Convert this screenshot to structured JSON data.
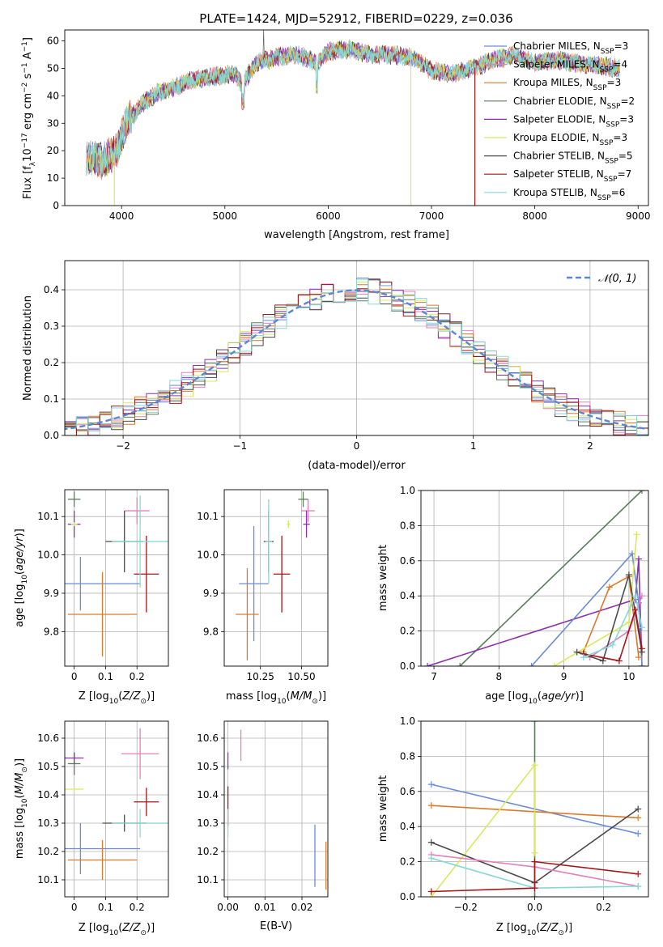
{
  "figure_title": "PLATE=1424, MJD=52912, FIBERID=0229, z=0.036",
  "colors": {
    "chabrier_miles": "#6a8bd6",
    "salpeter_miles": "#e47fbb",
    "kroupa_miles": "#db7a2b",
    "chabrier_elodie": "#5a7d5a",
    "salpeter_elodie": "#8e30ac",
    "kroupa_elodie": "#d9e85f",
    "chabrier_stelib": "#4a4a4a",
    "salpeter_stelib": "#a3161a",
    "kroupa_stelib": "#85d8d8"
  },
  "chart_data": [
    {
      "id": "spectrum",
      "type": "line",
      "title": "PLATE=1424, MJD=52912, FIBERID=0229, z=0.036",
      "xlabel": "wavelength [Angstrom, rest frame]",
      "ylabel_main": "Flux [f",
      "ylabel_sub": "λ",
      "ylabel_mid": "10",
      "ylabel_exp1": "−17",
      "ylabel_mid2": " erg cm",
      "ylabel_exp2": "−2",
      "ylabel_mid3": " s",
      "ylabel_exp3": "−1",
      "ylabel_mid4": " A",
      "ylabel_exp4": "−1",
      "ylabel_end": "]",
      "xlim": [
        3450,
        9100
      ],
      "ylim": [
        0,
        64
      ],
      "xticks": [
        4000,
        5000,
        6000,
        7000,
        8000,
        9000
      ],
      "yticks": [
        0,
        10,
        20,
        30,
        40,
        50,
        60
      ],
      "grid": false,
      "legend_position": "right",
      "legend": [
        {
          "name": "Chabrier MILES, N",
          "sub": "SSP",
          "tail": "=3",
          "color_key": "chabrier_miles"
        },
        {
          "name": "Salpeter MILES, N",
          "sub": "SSP",
          "tail": "=4",
          "color_key": "salpeter_miles"
        },
        {
          "name": "Kroupa MILES, N",
          "sub": "SSP",
          "tail": "=3",
          "color_key": "kroupa_miles"
        },
        {
          "name": "Chabrier ELODIE, N",
          "sub": "SSP",
          "tail": "=2",
          "color_key": "chabrier_elodie"
        },
        {
          "name": "Salpeter ELODIE, N",
          "sub": "SSP",
          "tail": "=3",
          "color_key": "salpeter_elodie"
        },
        {
          "name": "Kroupa ELODIE, N",
          "sub": "SSP",
          "tail": "=3",
          "color_key": "kroupa_elodie"
        },
        {
          "name": "Chabrier STELIB, N",
          "sub": "SSP",
          "tail": "=5",
          "color_key": "chabrier_stelib"
        },
        {
          "name": "Salpeter STELIB, N",
          "sub": "SSP",
          "tail": "=7",
          "color_key": "salpeter_stelib"
        },
        {
          "name": "Kroupa STELIB, N",
          "sub": "SSP",
          "tail": "=6",
          "color_key": "kroupa_stelib"
        }
      ],
      "continuum": [
        [
          3650,
          18
        ],
        [
          3800,
          16
        ],
        [
          3950,
          20
        ],
        [
          4050,
          30
        ],
        [
          4200,
          37
        ],
        [
          4350,
          41
        ],
        [
          4500,
          43
        ],
        [
          4700,
          46
        ],
        [
          4900,
          47
        ],
        [
          5100,
          48
        ],
        [
          5170,
          44
        ],
        [
          5300,
          52
        ],
        [
          5500,
          54
        ],
        [
          5700,
          55
        ],
        [
          5890,
          52
        ],
        [
          6000,
          56
        ],
        [
          6200,
          57
        ],
        [
          6400,
          55
        ],
        [
          6600,
          55
        ],
        [
          6800,
          54
        ],
        [
          6900,
          52
        ],
        [
          7000,
          49
        ],
        [
          7200,
          48
        ],
        [
          7400,
          50
        ],
        [
          7600,
          53
        ],
        [
          7800,
          55
        ],
        [
          8000,
          52
        ],
        [
          8200,
          53
        ],
        [
          8400,
          52
        ],
        [
          8600,
          51
        ],
        [
          8800,
          50
        ]
      ],
      "dropouts": [
        {
          "x": 6800,
          "color_key": "kroupa_elodie"
        },
        {
          "x": 7420,
          "color_key": "salpeter_stelib"
        },
        {
          "x": 3930,
          "color_key": "kroupa_elodie"
        }
      ]
    },
    {
      "id": "residual_hist",
      "type": "histogram",
      "xlabel": "(data-model)/error",
      "ylabel": "Normed distribution",
      "xlim": [
        -2.5,
        2.5
      ],
      "ylim": [
        0,
        0.48
      ],
      "xticks": [
        -2,
        -1,
        0,
        1,
        2
      ],
      "yticks": [
        0.0,
        0.1,
        0.2,
        0.3,
        0.4
      ],
      "grid": true,
      "legend_position": "top-right",
      "legend_label": "𝒩(0, 1)",
      "bin_width": 0.1
    },
    {
      "id": "age_vs_Z",
      "type": "scatter",
      "xlabel": "Z [log",
      "xlabel_sub": "10",
      "xlabel_tail": "(Z/Z",
      "xlabel_sub2": "⊙",
      "xlabel_end": ")]",
      "ylabel": "age  [log",
      "ylabel_sub": "10",
      "ylabel_tail": "(age/yr)]",
      "xlim": [
        -0.03,
        0.3
      ],
      "ylim": [
        9.71,
        10.17
      ],
      "xticks": [
        0.0,
        0.1,
        0.2
      ],
      "yticks": [
        9.8,
        9.9,
        10.0,
        10.1
      ],
      "grid": true,
      "points": [
        {
          "color_key": "chabrier_miles",
          "x": 0.02,
          "xerr": 0.19,
          "y": 9.925,
          "yerr": 0.07
        },
        {
          "color_key": "kroupa_miles",
          "x": 0.09,
          "xerr": 0.11,
          "y": 9.845,
          "yerr": 0.11
        },
        {
          "color_key": "salpeter_miles",
          "x": 0.2,
          "xerr": 0.04,
          "y": 10.115,
          "yerr": 0.035
        },
        {
          "color_key": "chabrier_elodie",
          "x": 0.0,
          "xerr": 0.02,
          "y": 10.145,
          "yerr": 0.02
        },
        {
          "color_key": "salpeter_elodie",
          "x": 0.0,
          "xerr": 0.02,
          "y": 10.08,
          "yerr": 0.035
        },
        {
          "color_key": "kroupa_elodie",
          "x": 0.0,
          "xerr": 0.01,
          "y": 10.08,
          "yerr": 0.005
        },
        {
          "color_key": "chabrier_stelib",
          "x": 0.16,
          "xerr": 0.06,
          "y": 10.035,
          "yerr": 0.08
        },
        {
          "color_key": "salpeter_stelib",
          "x": 0.23,
          "xerr": 0.04,
          "y": 9.95,
          "yerr": 0.1
        },
        {
          "color_key": "kroupa_stelib",
          "x": 0.21,
          "xerr": 0.09,
          "y": 10.035,
          "yerr": 0.12
        }
      ]
    },
    {
      "id": "age_vs_mass",
      "type": "scatter",
      "xlabel": "mass [log",
      "xlabel_sub": "10",
      "xlabel_tail": "(M/M",
      "xlabel_sub2": "⊙",
      "xlabel_end": ")]",
      "xlim": [
        10.03,
        10.66
      ],
      "ylim": [
        9.71,
        10.17
      ],
      "xticks": [
        10.25,
        10.5
      ],
      "xtick_labels": [
        "10.25",
        "10.50"
      ],
      "yticks": [
        9.8,
        9.9,
        10.0,
        10.1
      ],
      "grid": true,
      "points": [
        {
          "color_key": "chabrier_miles",
          "x": 10.21,
          "xerr": 0.09,
          "y": 9.925,
          "yerr": 0.15
        },
        {
          "color_key": "kroupa_miles",
          "x": 10.17,
          "xerr": 0.07,
          "y": 9.845,
          "yerr": 0.12
        },
        {
          "color_key": "salpeter_miles",
          "x": 10.54,
          "xerr": 0.04,
          "y": 10.115,
          "yerr": 0.03
        },
        {
          "color_key": "chabrier_elodie",
          "x": 10.51,
          "xerr": 0.03,
          "y": 10.145,
          "yerr": 0.02
        },
        {
          "color_key": "salpeter_elodie",
          "x": 10.53,
          "xerr": 0.02,
          "y": 10.08,
          "yerr": 0.035
        },
        {
          "color_key": "kroupa_elodie",
          "x": 10.42,
          "xerr": 0.01,
          "y": 10.08,
          "yerr": 0.01
        },
        {
          "color_key": "chabrier_stelib",
          "x": 10.3,
          "xerr": 0.03,
          "y": 10.035,
          "yerr": 0.08
        },
        {
          "color_key": "salpeter_stelib",
          "x": 10.38,
          "xerr": 0.05,
          "y": 9.95,
          "yerr": 0.1
        },
        {
          "color_key": "kroupa_stelib",
          "x": 10.3,
          "xerr": 0.02,
          "y": 10.035,
          "yerr": 0.11
        }
      ]
    },
    {
      "id": "massweight_vs_age",
      "type": "line",
      "xlabel": "age  [log",
      "xlabel_sub": "10",
      "xlabel_tail": "(age/yr)]",
      "ylabel": "mass weight",
      "xlim": [
        6.8,
        10.3
      ],
      "ylim": [
        0,
        1.0
      ],
      "xticks": [
        7,
        8,
        9,
        10
      ],
      "yticks": [
        0.0,
        0.2,
        0.4,
        0.6,
        0.8,
        1.0
      ],
      "grid": true,
      "series": [
        {
          "color_key": "chabrier_elodie",
          "points": [
            [
              7.4,
              0.0
            ],
            [
              10.2,
              1.0
            ]
          ]
        },
        {
          "color_key": "salpeter_elodie",
          "points": [
            [
              6.9,
              0.0
            ],
            [
              10.1,
              0.38
            ],
            [
              10.15,
              0.61
            ],
            [
              10.2,
              0.0
            ]
          ]
        },
        {
          "color_key": "chabrier_miles",
          "points": [
            [
              8.5,
              0.0
            ],
            [
              10.05,
              0.64
            ],
            [
              10.15,
              0.36
            ],
            [
              10.2,
              0.0
            ]
          ]
        },
        {
          "color_key": "kroupa_miles",
          "points": [
            [
              9.3,
              0.08
            ],
            [
              9.7,
              0.45
            ],
            [
              10.0,
              0.51
            ],
            [
              10.15,
              0.05
            ]
          ]
        },
        {
          "color_key": "kroupa_elodie",
          "points": [
            [
              8.85,
              0.0
            ],
            [
              10.0,
              0.25
            ],
            [
              10.12,
              0.75
            ]
          ]
        },
        {
          "color_key": "salpeter_miles",
          "points": [
            [
              9.4,
              0.05
            ],
            [
              10.0,
              0.2
            ],
            [
              10.2,
              0.4
            ]
          ]
        },
        {
          "color_key": "chabrier_stelib",
          "points": [
            [
              9.2,
              0.08
            ],
            [
              9.6,
              0.03
            ],
            [
              10.0,
              0.52
            ],
            [
              10.2,
              0.08
            ]
          ]
        },
        {
          "color_key": "salpeter_stelib",
          "points": [
            [
              9.3,
              0.07
            ],
            [
              9.85,
              0.03
            ],
            [
              10.1,
              0.32
            ],
            [
              10.2,
              0.1
            ]
          ]
        },
        {
          "color_key": "kroupa_stelib",
          "points": [
            [
              9.3,
              0.05
            ],
            [
              9.75,
              0.12
            ],
            [
              10.1,
              0.4
            ],
            [
              10.2,
              0.22
            ]
          ]
        }
      ]
    },
    {
      "id": "mass_vs_Z",
      "type": "scatter",
      "xlabel": "Z [log",
      "xlabel_sub": "10",
      "xlabel_tail": "(Z/Z",
      "xlabel_sub2": "⊙",
      "xlabel_end": ")]",
      "ylabel": "mass [log",
      "ylabel_sub": "10",
      "ylabel_tail": "(M/M",
      "ylabel_sub2": "⊙",
      "ylabel_end": ")]",
      "xlim": [
        -0.03,
        0.3
      ],
      "ylim": [
        10.04,
        10.66
      ],
      "xticks": [
        0.0,
        0.1,
        0.2
      ],
      "yticks": [
        10.1,
        10.2,
        10.3,
        10.4,
        10.5,
        10.6
      ],
      "grid": true,
      "points": [
        {
          "color_key": "chabrier_miles",
          "x": 0.02,
          "xerr": 0.19,
          "y": 10.21,
          "yerr": 0.09
        },
        {
          "color_key": "kroupa_miles",
          "x": 0.09,
          "xerr": 0.11,
          "y": 10.17,
          "yerr": 0.07
        },
        {
          "color_key": "salpeter_miles",
          "x": 0.21,
          "xerr": 0.06,
          "y": 10.545,
          "yerr": 0.09
        },
        {
          "color_key": "chabrier_elodie",
          "x": 0.0,
          "xerr": 0.02,
          "y": 10.51,
          "yerr": 0.04
        },
        {
          "color_key": "salpeter_elodie",
          "x": 0.0,
          "xerr": 0.03,
          "y": 10.53,
          "yerr": 0.02
        },
        {
          "color_key": "kroupa_elodie",
          "x": 0.0,
          "xerr": 0.03,
          "y": 10.42,
          "yerr": 0.01
        },
        {
          "color_key": "chabrier_stelib",
          "x": 0.16,
          "xerr": 0.07,
          "y": 10.3,
          "yerr": 0.03
        },
        {
          "color_key": "salpeter_stelib",
          "x": 0.23,
          "xerr": 0.04,
          "y": 10.375,
          "yerr": 0.05
        },
        {
          "color_key": "kroupa_stelib",
          "x": 0.21,
          "xerr": 0.09,
          "y": 10.3,
          "yerr": 0.05
        }
      ]
    },
    {
      "id": "mass_vs_EBV",
      "type": "scatter",
      "xlabel": "E(B-V)",
      "xlim": [
        -0.001,
        0.027
      ],
      "ylim": [
        10.04,
        10.66
      ],
      "xticks": [
        0.0,
        0.01,
        0.02
      ],
      "xtick_labels": [
        "0.00",
        "0.01",
        "0.02"
      ],
      "yticks": [
        10.1,
        10.2,
        10.3,
        10.4,
        10.5,
        10.6
      ],
      "grid": true,
      "points": [
        {
          "color_key": "chabrier_miles",
          "x": 0.0235,
          "xerr": 0,
          "y": 10.185,
          "yerr": 0.11
        },
        {
          "color_key": "kroupa_miles",
          "x": 0.0265,
          "xerr": 0,
          "y": 10.15,
          "yerr": 0.085
        },
        {
          "color_key": "salpeter_miles",
          "x": 0.0035,
          "xerr": 0,
          "y": 10.575,
          "yerr": 0.055
        },
        {
          "color_key": "salpeter_elodie",
          "x": 0.0,
          "xerr": 0,
          "y": 10.52,
          "yerr": 0.03
        },
        {
          "color_key": "salpeter_stelib",
          "x": 0.0,
          "xerr": 0,
          "y": 10.36,
          "yerr": 0.07
        },
        {
          "color_key": "kroupa_stelib",
          "x": 0.0,
          "xerr": 0,
          "y": 10.3,
          "yerr": 0.05
        }
      ]
    },
    {
      "id": "massweight_vs_Z",
      "type": "line",
      "xlabel": "Z [log",
      "xlabel_sub": "10",
      "xlabel_tail": "(Z/Z",
      "xlabel_sub2": "⊙",
      "xlabel_end": ")]",
      "ylabel": "mass weight",
      "xlim": [
        -0.33,
        0.33
      ],
      "ylim": [
        0,
        1.0
      ],
      "xticks": [
        -0.2,
        0.0,
        0.2
      ],
      "xtick_labels": [
        "−0.2",
        "0.0",
        "0.2"
      ],
      "yticks": [
        0.0,
        0.2,
        0.4,
        0.6,
        0.8,
        1.0
      ],
      "grid": true,
      "series": [
        {
          "color_key": "chabrier_miles",
          "points": [
            [
              -0.3,
              0.64
            ],
            [
              0.3,
              0.36
            ]
          ]
        },
        {
          "color_key": "kroupa_miles",
          "points": [
            [
              -0.3,
              0.52
            ],
            [
              0.3,
              0.45
            ]
          ]
        },
        {
          "color_key": "chabrier_elodie",
          "points": [
            [
              0.0,
              1.0
            ],
            [
              0.0,
              0.0
            ]
          ]
        },
        {
          "color_key": "kroupa_elodie",
          "points": [
            [
              -0.3,
              0.0
            ],
            [
              0.0,
              0.75
            ],
            [
              0.0,
              0.25
            ]
          ]
        },
        {
          "color_key": "chabrier_stelib",
          "points": [
            [
              -0.3,
              0.31
            ],
            [
              0.0,
              0.08
            ],
            [
              0.3,
              0.5
            ]
          ]
        },
        {
          "color_key": "salpeter_miles",
          "points": [
            [
              -0.3,
              0.24
            ],
            [
              0.0,
              0.17
            ],
            [
              0.3,
              0.06
            ]
          ]
        },
        {
          "color_key": "kroupa_stelib",
          "points": [
            [
              -0.3,
              0.22
            ],
            [
              0.0,
              0.05
            ],
            [
              0.3,
              0.06
            ]
          ]
        },
        {
          "color_key": "salpeter_stelib",
          "points": [
            [
              -0.3,
              0.03
            ],
            [
              0.0,
              0.05
            ],
            [
              0.0,
              0.2
            ],
            [
              0.3,
              0.13
            ]
          ]
        }
      ]
    }
  ]
}
